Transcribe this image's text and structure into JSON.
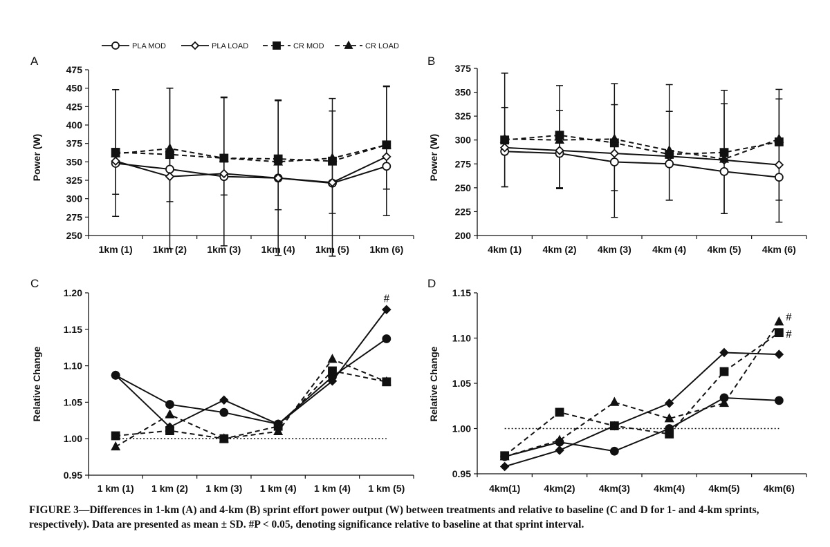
{
  "legend": [
    {
      "label": "PLA MOD",
      "marker": "circle-open",
      "dash": false
    },
    {
      "label": "PLA LOAD",
      "marker": "diamond-open",
      "dash": false
    },
    {
      "label": "CR MOD",
      "marker": "square-filled",
      "dash": true
    },
    {
      "label": "CR LOAD",
      "marker": "triangle-filled",
      "dash": true
    }
  ],
  "caption": {
    "number": "FIGURE 3",
    "text": "—Differences in 1-km (A) and 4-km (B) sprint effort power output (W) between treatments and relative to baseline (C and D for 1- and 4-km sprints, respectively). Data are presented as mean ± SD. #P < 0.05, denoting significance relative to baseline at that sprint interval."
  },
  "chart_data": [
    {
      "panel": "A",
      "type": "line",
      "ylabel": "Power (W)",
      "ylim": [
        250,
        475
      ],
      "yticks": [
        250,
        275,
        300,
        325,
        350,
        375,
        400,
        425,
        450,
        475
      ],
      "categories": [
        "1km (1)",
        "1km (2)",
        "1km (3)",
        "1km (4)",
        "1km (5)",
        "1km (6)"
      ],
      "series": [
        {
          "name": "PLA MOD",
          "marker": "circle-open",
          "dash": false,
          "values": [
            348,
            340,
            330,
            328,
            321,
            344
          ],
          "error": [
            100,
            110,
            108,
            105,
            98,
            108
          ],
          "err_side": "up"
        },
        {
          "name": "PLA LOAD",
          "marker": "diamond-open",
          "dash": false,
          "values": [
            351,
            330,
            334,
            328,
            322,
            357
          ],
          "error": [
            75,
            98,
            98,
            105,
            100,
            80
          ],
          "err_side": "down"
        },
        {
          "name": "CR MOD",
          "marker": "square-filled",
          "dash": true,
          "values": [
            363,
            360,
            355,
            354,
            351,
            373
          ],
          "error": [
            85,
            90,
            82,
            80,
            85,
            80
          ],
          "err_side": "up"
        },
        {
          "name": "CR LOAD",
          "marker": "triangle-filled",
          "dash": true,
          "values": [
            361,
            368,
            355,
            350,
            355,
            373
          ],
          "error": [
            55,
            72,
            50,
            65,
            75,
            60
          ],
          "err_side": "down"
        }
      ]
    },
    {
      "panel": "B",
      "type": "line",
      "ylabel": "Power (W)",
      "ylim": [
        200,
        375
      ],
      "yticks": [
        200,
        225,
        250,
        275,
        300,
        325,
        350,
        375
      ],
      "categories": [
        "4km (1)",
        "4km (2)",
        "4km (3)",
        "4km (4)",
        "4km (5)",
        "4km (6)"
      ],
      "series": [
        {
          "name": "PLA MOD",
          "marker": "circle-open",
          "dash": false,
          "values": [
            288,
            286,
            277,
            275,
            267,
            261
          ],
          "error": [
            37,
            37,
            58,
            38,
            44,
            47
          ],
          "err_side": "down"
        },
        {
          "name": "PLA LOAD",
          "marker": "diamond-open",
          "dash": false,
          "values": [
            292,
            289,
            286,
            283,
            279,
            274
          ],
          "error": [
            42,
            42,
            51,
            47,
            59,
            69
          ],
          "err_side": "up"
        },
        {
          "name": "CR MOD",
          "marker": "square-filled",
          "dash": true,
          "values": [
            300,
            305,
            297,
            285,
            287,
            298
          ],
          "error": [
            70,
            52,
            62,
            73,
            65,
            55
          ],
          "err_side": "up"
        },
        {
          "name": "CR LOAD",
          "marker": "triangle-filled",
          "dash": true,
          "values": [
            301,
            300,
            301,
            289,
            280,
            301
          ],
          "error": [
            50,
            50,
            54,
            52,
            57,
            64
          ],
          "err_side": "down"
        }
      ]
    },
    {
      "panel": "C",
      "type": "line",
      "ylabel": "Relative Change",
      "ylim": [
        0.95,
        1.2
      ],
      "yticks": [
        0.95,
        1.0,
        1.05,
        1.1,
        1.15,
        1.2
      ],
      "ytick_labels": [
        "0.95",
        "1.00",
        "1.05",
        "1.10",
        "1.15",
        "1.20"
      ],
      "baseline": 1.0,
      "categories": [
        "1 km (1)",
        "1 km (2)",
        "1 km (3)",
        "1 km (4)",
        "1 km (4)",
        "1 km (5)"
      ],
      "series": [
        {
          "name": "PLA MOD",
          "marker": "circle-filled",
          "dash": false,
          "values": [
            1.087,
            1.047,
            1.036,
            1.02,
            1.085,
            1.137
          ]
        },
        {
          "name": "PLA LOAD",
          "marker": "diamond-filled",
          "dash": false,
          "values": [
            1.087,
            1.016,
            1.053,
            1.02,
            1.079,
            1.177
          ]
        },
        {
          "name": "CR MOD",
          "marker": "square-filled",
          "dash": true,
          "values": [
            1.004,
            1.011,
            1.0,
            1.017,
            1.093,
            1.078
          ]
        },
        {
          "name": "CR LOAD",
          "marker": "triangle-filled",
          "dash": true,
          "values": [
            0.989,
            1.033,
            1.0,
            1.01,
            1.109,
            1.078
          ]
        }
      ],
      "annotations": [
        {
          "text": "#",
          "category_index": 5,
          "value": 1.193
        }
      ]
    },
    {
      "panel": "D",
      "type": "line",
      "ylabel": "Relative Change",
      "ylim": [
        0.95,
        1.15
      ],
      "yticks": [
        0.95,
        1.0,
        1.05,
        1.1,
        1.15
      ],
      "ytick_labels": [
        "0.95",
        "1.00",
        "1.05",
        "1.10",
        "1.15"
      ],
      "baseline": 1.0,
      "categories": [
        "4km(1)",
        "4km(2)",
        "4km(3)",
        "4km(4)",
        "4km(5)",
        "4km(6)"
      ],
      "series": [
        {
          "name": "PLA MOD",
          "marker": "circle-filled",
          "dash": false,
          "values": [
            0.969,
            0.985,
            0.975,
            1.0,
            1.034,
            1.031
          ]
        },
        {
          "name": "PLA LOAD",
          "marker": "diamond-filled",
          "dash": false,
          "values": [
            0.958,
            0.976,
            1.003,
            1.028,
            1.084,
            1.082
          ]
        },
        {
          "name": "CR MOD",
          "marker": "square-filled",
          "dash": true,
          "values": [
            0.97,
            1.018,
            1.003,
            0.994,
            1.063,
            1.106
          ]
        },
        {
          "name": "CR LOAD",
          "marker": "triangle-filled",
          "dash": true,
          "values": [
            0.969,
            0.987,
            1.029,
            1.011,
            1.028,
            1.118
          ]
        }
      ],
      "annotations": [
        {
          "text": "#",
          "category_index": 5,
          "value": 1.124
        },
        {
          "text": "#",
          "category_index": 5,
          "value": 1.105
        }
      ]
    }
  ]
}
